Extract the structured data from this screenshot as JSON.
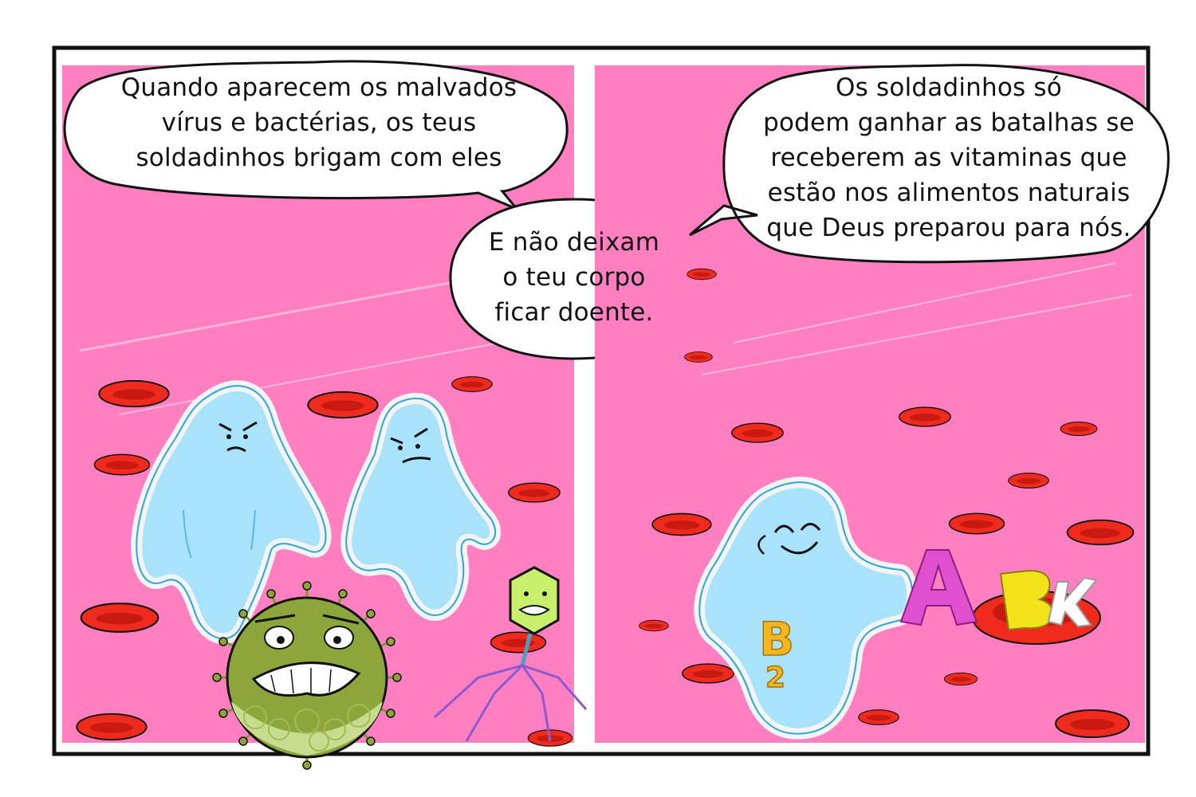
{
  "panel_left": {
    "bubble_top": {
      "lines": [
        "Quando aparecem os malvados",
        "vírus e bactérias, os teus",
        "soldadinhos brigam com eles"
      ]
    },
    "bubble_bottom": {
      "lines": [
        "E não deixam",
        "o teu corpo",
        "ficar doente."
      ]
    }
  },
  "panel_right": {
    "bubble": {
      "lines": [
        "Os soldadinhos só",
        "podem ganhar as batalhas se",
        "receberem as vitaminas que",
        "estão nos alimentos naturais",
        "que Deus preparou para nós."
      ]
    },
    "vitamins": [
      "A",
      "B",
      "K",
      "B2"
    ]
  },
  "colors": {
    "panel_background": "#ff7fc0",
    "blood_cell": "#ee2b1c",
    "white_cell": "#a9e3fb",
    "virus": "#8da63c",
    "vitamin_A": "#e04fd0",
    "vitamin_B": "#f2e21a",
    "vitamin_B2": "#f4b61e"
  }
}
